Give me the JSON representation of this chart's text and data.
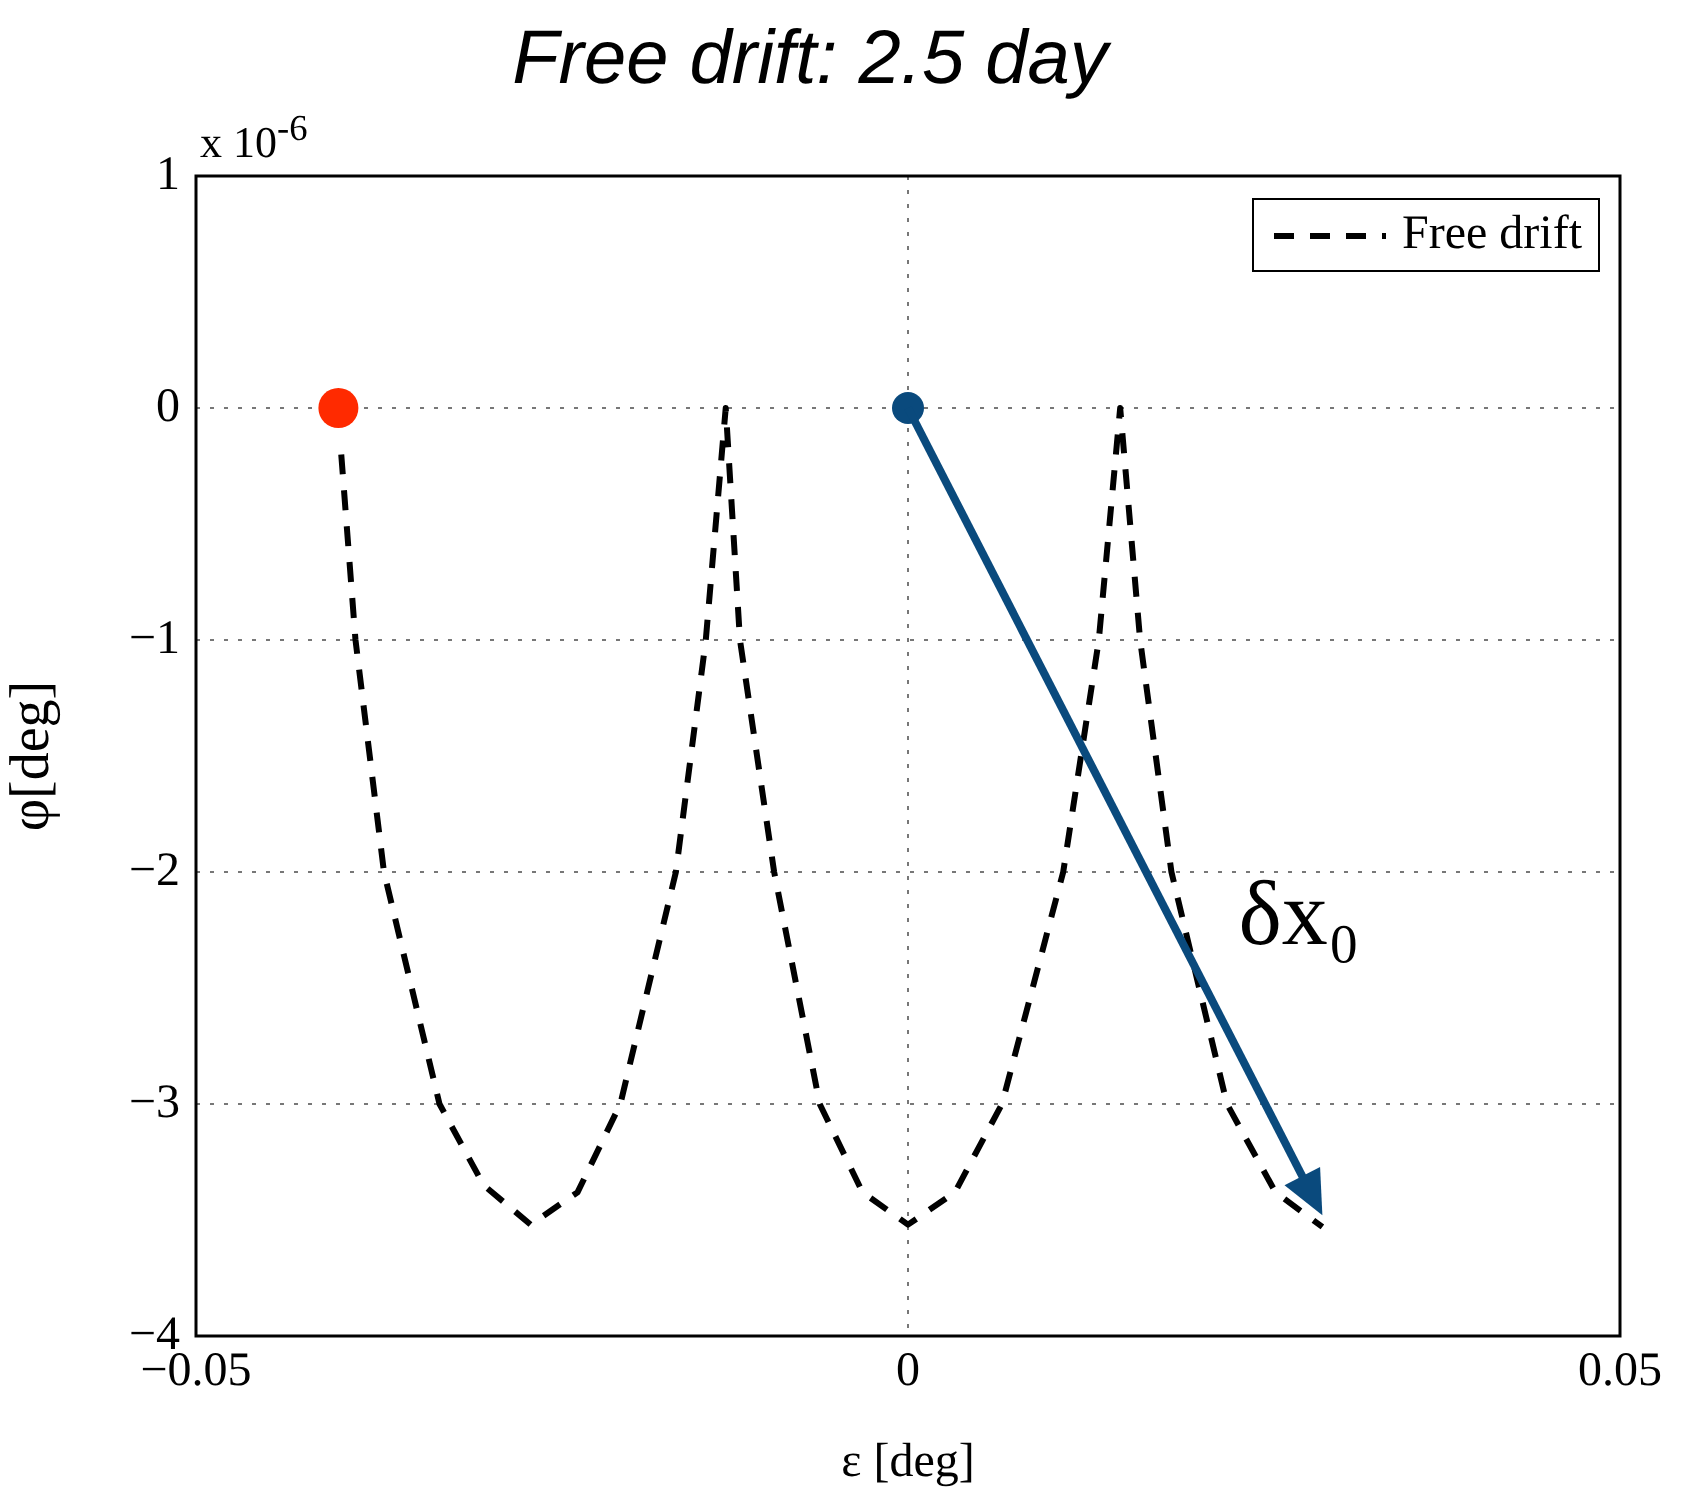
{
  "chart_data": {
    "type": "line",
    "title": "Free drift: 2.5 day",
    "xlabel": "ε [deg]",
    "ylabel": "φ[deg]",
    "xlim": [
      -0.05,
      0.05
    ],
    "xticks": [
      {
        "value": -0.05,
        "label": "−0.05"
      },
      0,
      0.05
    ],
    "ylim": [
      -4,
      1
    ],
    "yticks": [
      1,
      0,
      {
        "value": -1,
        "label": "−1"
      },
      {
        "value": -2,
        "label": "−2"
      },
      {
        "value": -3,
        "label": "−3"
      },
      {
        "value": -4,
        "label": "−4"
      }
    ],
    "grid": true,
    "legend": "top right",
    "annotations": [
      "x 10$^{-6}$",
      {
        "text": "δx₀",
        "x": 0.0291,
        "y": -3.48
      }
    ],
    "series": [
      {
        "name": "Free drift",
        "color": "#000000",
        "line_style": "dashed",
        "marker": "none",
        "x": [
          -0.0398,
          -0.0388,
          -0.0368,
          -0.0329,
          -0.0298,
          -0.0265,
          -0.0232,
          -0.0202,
          -0.0163,
          -0.0142,
          -0.0128,
          -0.0118,
          -0.0094,
          -0.0062,
          -0.0032,
          0,
          0.0033,
          0.0066,
          0.0109,
          0.0134,
          0.0149,
          0.0163,
          0.0185,
          0.0224,
          0.0258,
          0.0291
        ],
        "values": [
          -0.2,
          -1,
          -2,
          -3,
          -3.35,
          -3.52,
          -3.38,
          -3,
          -2,
          -1,
          0,
          -1,
          -2,
          -3,
          -3.38,
          -3.52,
          -3.38,
          -3,
          -2,
          -1,
          0,
          -1,
          -2,
          -3,
          -3.38,
          -3.53
        ]
      },
      {
        "type": "scatter",
        "color": "#ff2a00",
        "marker": "circle",
        "x": [
          -0.04
        ],
        "values": [
          0
        ]
      },
      {
        "type": "scatter",
        "color": "#0a4a7d",
        "marker": "circle",
        "x": [
          0
        ],
        "values": [
          0
        ]
      }
    ]
  }
}
